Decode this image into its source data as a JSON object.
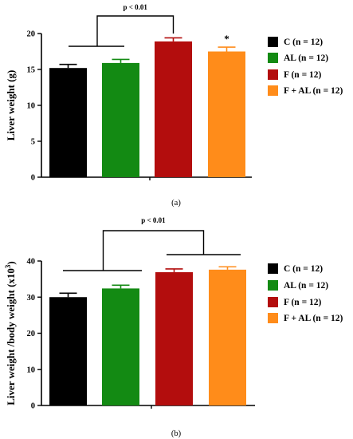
{
  "colors": {
    "C": "#000000",
    "AL": "#138a13",
    "F": "#b30d0d",
    "F_AL": "#ff8c1a"
  },
  "chart_data": [
    {
      "type": "bar",
      "panel_label": "(a)",
      "ylabel": "Liver weight (g)",
      "ylim": [
        0,
        20
      ],
      "yticks": [
        0,
        5,
        10,
        15,
        20
      ],
      "categories": [
        "C (n = 12)",
        "AL (n = 12)",
        "F (n = 12)",
        "F + AL (n = 12)"
      ],
      "values": [
        15.2,
        15.9,
        18.9,
        17.5
      ],
      "errors": [
        0.5,
        0.5,
        0.5,
        0.6
      ],
      "colors": [
        "#000000",
        "#138a13",
        "#b30d0d",
        "#ff8c1a"
      ],
      "legend": [
        "C (n = 12)",
        "AL (n = 12)",
        "F (n = 12)",
        "F + AL (n = 12)"
      ],
      "legend_position": "right",
      "grid": false,
      "annotations": [
        {
          "type": "bracket",
          "text": "p < 0.01",
          "groups": [
            [
              0,
              1
            ],
            [
              2
            ]
          ]
        },
        {
          "type": "marker",
          "text": "*",
          "bar": 3
        }
      ]
    },
    {
      "type": "bar",
      "panel_label": "(b)",
      "ylabel": "Liver weight /body weight (x10",
      "ylabel_sup": "3",
      "ylabel_close": ")",
      "ylim": [
        0,
        40
      ],
      "yticks": [
        0,
        10,
        20,
        30,
        40
      ],
      "categories": [
        "C (n = 12)",
        "AL (n = 12)",
        "F (n = 12)",
        "F + AL (n = 12)"
      ],
      "values": [
        30.0,
        32.4,
        36.9,
        37.6
      ],
      "errors": [
        1.1,
        0.9,
        0.9,
        0.8
      ],
      "colors": [
        "#000000",
        "#138a13",
        "#b30d0d",
        "#ff8c1a"
      ],
      "legend": [
        "C (n = 12)",
        "AL (n = 12)",
        "F (n = 12)",
        "F + AL (n = 12)"
      ],
      "legend_position": "right",
      "grid": false,
      "annotations": [
        {
          "type": "bracket",
          "text": "p < 0.01",
          "groups": [
            [
              0,
              1
            ],
            [
              2,
              3
            ]
          ]
        }
      ]
    }
  ]
}
